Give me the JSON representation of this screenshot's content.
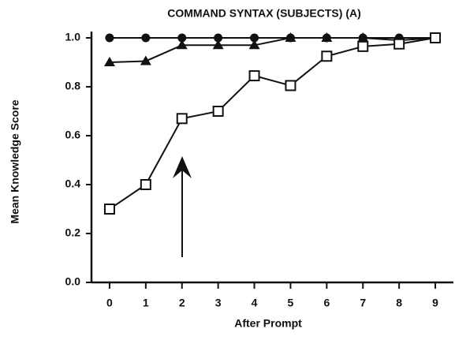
{
  "chart_data": {
    "type": "line",
    "title": "COMMAND SYNTAX (SUBJECTS) (A)",
    "xlabel": "After Prompt",
    "ylabel": "Mean Knowledge Score",
    "x": [
      0,
      1,
      2,
      3,
      4,
      5,
      6,
      7,
      8,
      9
    ],
    "series": [
      {
        "color": "#111111",
        "marker": "circle",
        "values": [
          1.0,
          1.0,
          1.0,
          1.0,
          1.0,
          1.0,
          1.0,
          1.0,
          1.0,
          1.0
        ]
      },
      {
        "color": "#111111",
        "marker": "triangle",
        "values": [
          0.9,
          0.905,
          0.97,
          0.97,
          0.97,
          1.0,
          1.0,
          1.0,
          0.99,
          1.0
        ]
      },
      {
        "color": "#111111",
        "marker": "square-open",
        "values": [
          0.3,
          0.4,
          0.67,
          0.7,
          0.845,
          0.805,
          0.925,
          0.965,
          0.975,
          1.0
        ]
      }
    ],
    "xlim": [
      -0.5,
      9.5
    ],
    "xticks": [
      0,
      1,
      2,
      3,
      4,
      5,
      6,
      7,
      8,
      9
    ],
    "ylim": [
      0,
      1.0
    ],
    "yticks": [
      {
        "value": 0,
        "label": "0.0"
      },
      0.2,
      0.4,
      0.6,
      0.8,
      {
        "value": 1.0,
        "label": "1.0"
      }
    ]
  }
}
